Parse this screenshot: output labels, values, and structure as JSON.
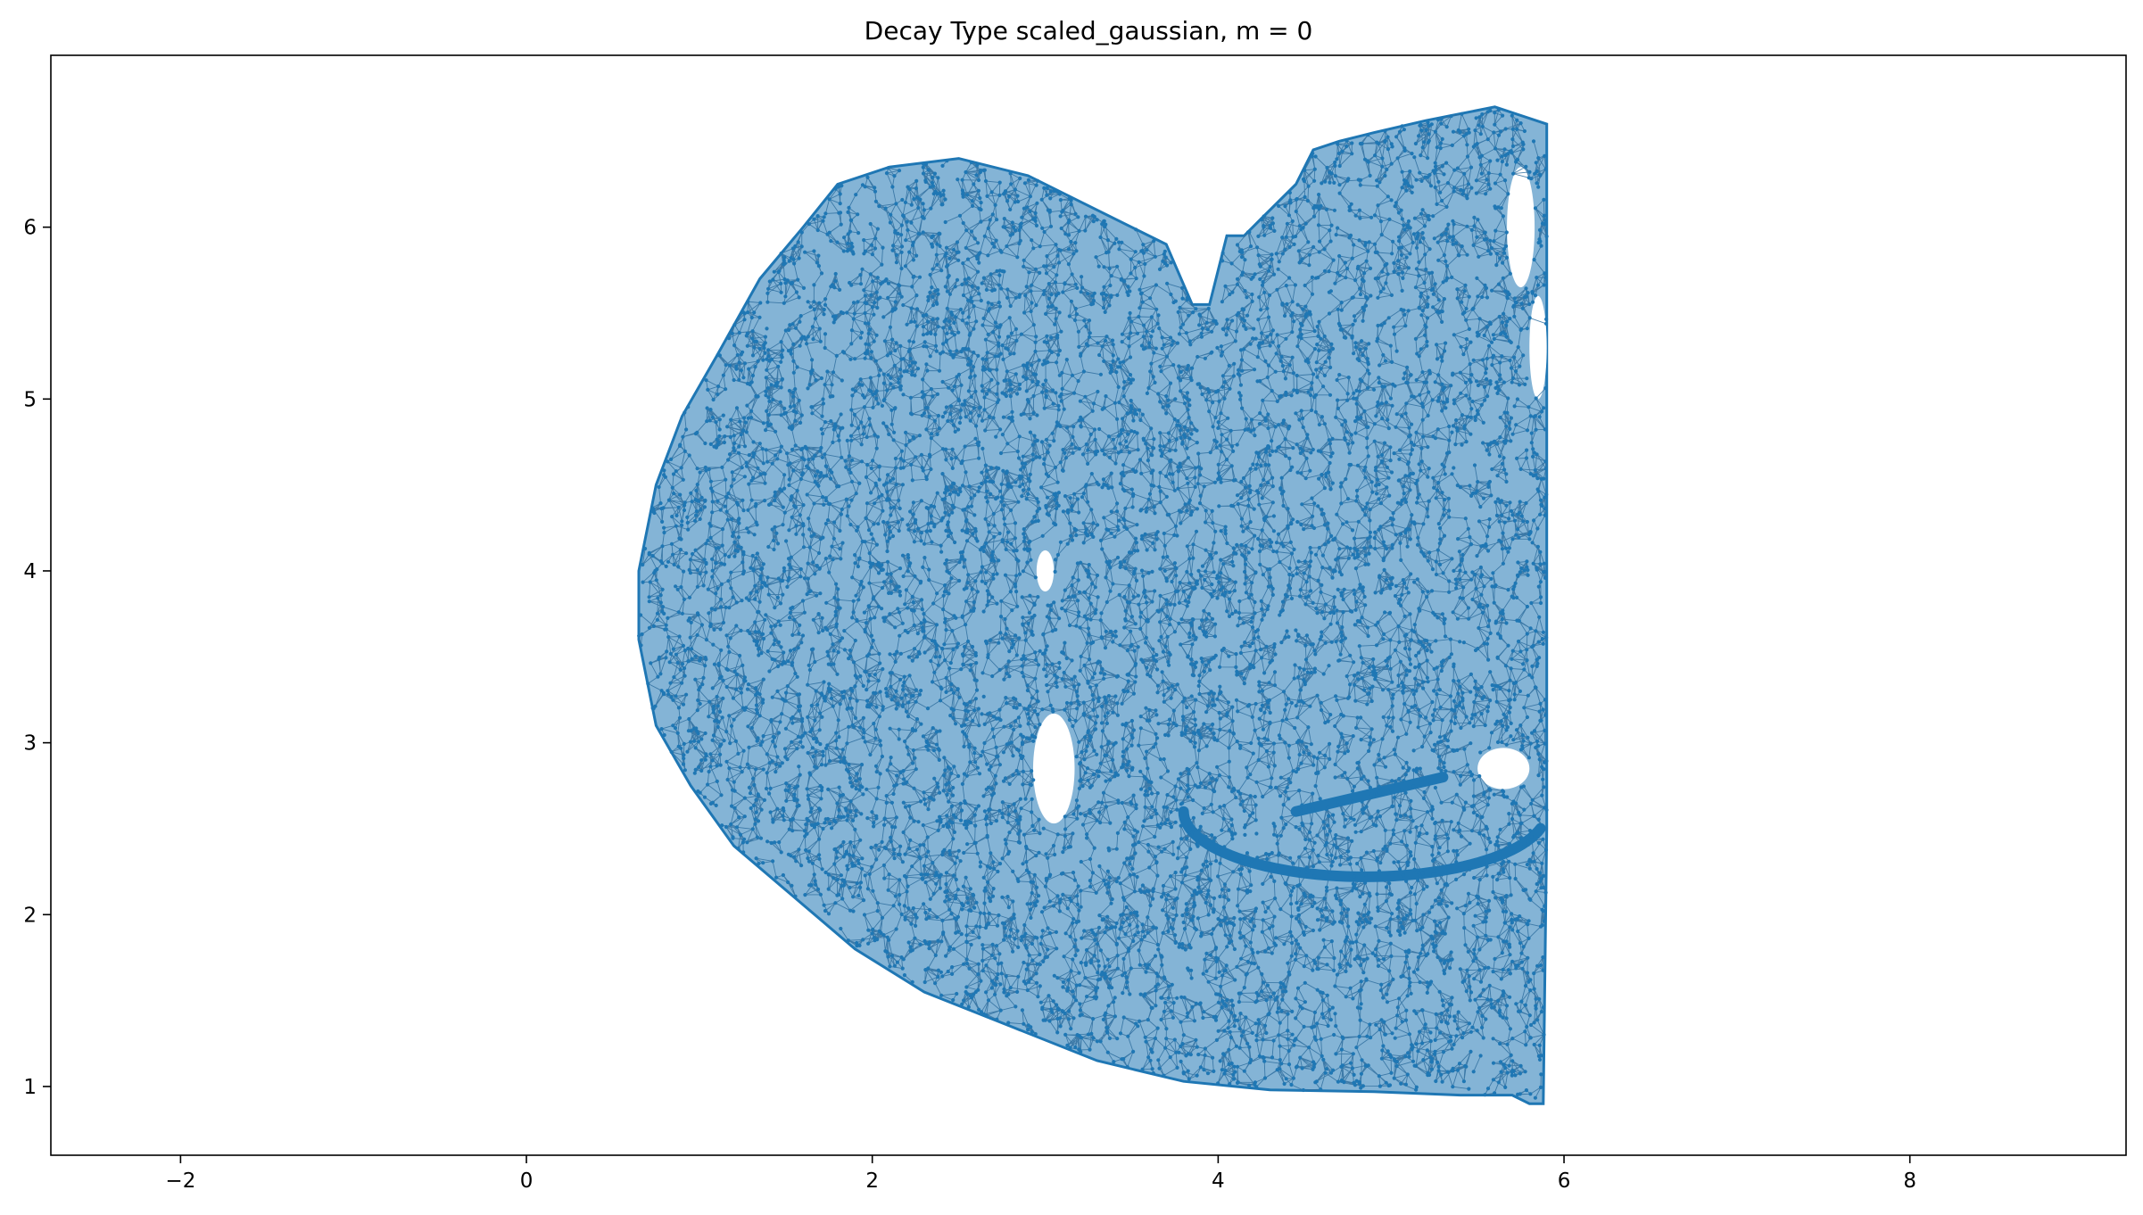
{
  "chart_data": {
    "type": "scatter",
    "title": "Decay Type scaled_gaussian, m = 0",
    "xlabel": "",
    "ylabel": "",
    "xlim": [
      -2.75,
      9.25
    ],
    "ylim": [
      0.6,
      7.0
    ],
    "xticks": [
      -2,
      0,
      2,
      4,
      6,
      8
    ],
    "yticks": [
      1,
      2,
      3,
      4,
      5,
      6
    ],
    "xtick_labels": [
      "−2",
      "0",
      "2",
      "4",
      "6",
      "8"
    ],
    "ytick_labels": [
      "1",
      "2",
      "3",
      "4",
      "5",
      "6"
    ],
    "grid": false,
    "legend": "none",
    "marker_color": "#1f77b4",
    "edge_color": "#2f6f9f",
    "outline": [
      [
        5.9,
        6.6
      ],
      [
        5.6,
        6.7
      ],
      [
        5.2,
        6.62
      ],
      [
        4.9,
        6.55
      ],
      [
        4.7,
        6.5
      ],
      [
        4.55,
        6.45
      ],
      [
        4.45,
        6.25
      ],
      [
        4.25,
        6.05
      ],
      [
        4.15,
        5.95
      ],
      [
        4.05,
        5.95
      ],
      [
        4.0,
        5.75
      ],
      [
        3.95,
        5.55
      ],
      [
        3.85,
        5.55
      ],
      [
        3.7,
        5.9
      ],
      [
        3.5,
        6.0
      ],
      [
        3.2,
        6.15
      ],
      [
        2.9,
        6.3
      ],
      [
        2.5,
        6.4
      ],
      [
        2.1,
        6.35
      ],
      [
        1.8,
        6.25
      ],
      [
        1.6,
        6.0
      ],
      [
        1.35,
        5.7
      ],
      [
        1.1,
        5.25
      ],
      [
        0.9,
        4.9
      ],
      [
        0.75,
        4.5
      ],
      [
        0.65,
        4.0
      ],
      [
        0.65,
        3.6
      ],
      [
        0.75,
        3.1
      ],
      [
        0.95,
        2.75
      ],
      [
        1.2,
        2.4
      ],
      [
        1.55,
        2.1
      ],
      [
        1.9,
        1.8
      ],
      [
        2.3,
        1.55
      ],
      [
        2.8,
        1.35
      ],
      [
        3.3,
        1.15
      ],
      [
        3.8,
        1.03
      ],
      [
        4.3,
        0.98
      ],
      [
        4.9,
        0.97
      ],
      [
        5.4,
        0.95
      ],
      [
        5.7,
        0.95
      ],
      [
        5.8,
        0.9
      ],
      [
        5.88,
        0.9
      ],
      [
        5.9,
        2.5
      ],
      [
        5.9,
        4.5
      ]
    ],
    "holes": [
      {
        "x": 3.05,
        "y": 2.85,
        "rx": 0.12,
        "ry": 0.32
      },
      {
        "x": 5.75,
        "y": 6.0,
        "rx": 0.08,
        "ry": 0.35
      },
      {
        "x": 5.85,
        "y": 5.3,
        "rx": 0.05,
        "ry": 0.3
      },
      {
        "x": 5.65,
        "y": 2.85,
        "rx": 0.15,
        "ry": 0.12
      },
      {
        "x": 3.0,
        "y": 4.0,
        "rx": 0.05,
        "ry": 0.12
      }
    ],
    "arcs": [
      {
        "cx": 4.85,
        "cy": 2.6,
        "rx": 1.05,
        "ry": 0.38,
        "start": 180,
        "end": 345
      },
      {
        "x1": 4.45,
        "y1": 2.6,
        "x2": 5.3,
        "y2": 2.8
      }
    ],
    "n_points": 9000
  }
}
